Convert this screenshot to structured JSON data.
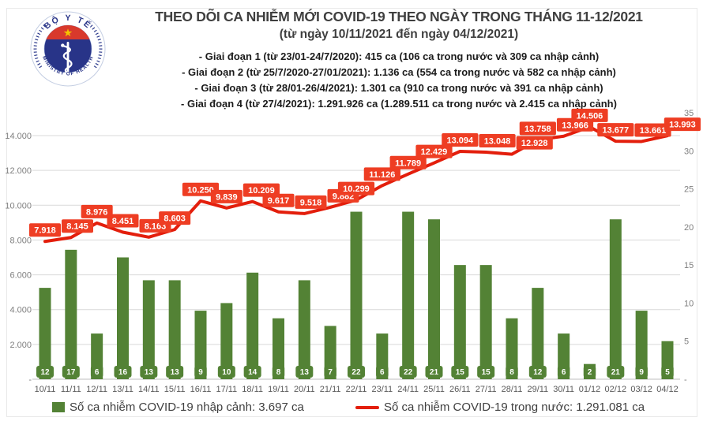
{
  "header": {
    "title": "THEO DÕI CA NHIỄM MỚI COVID-19 THEO NGÀY TRONG THÁNG 11-12/2021",
    "subtitle": "(từ ngày 10/11/2021 đến ngày 04/12/2021)"
  },
  "logo": {
    "top_text": "BỘ Y TẾ",
    "bottom_text": "MINISTRY OF HEALTH"
  },
  "annotations": [
    "- Giai đoạn 1 (từ 23/01-24/7/2020): 415 ca (106 ca trong nước và 309 ca nhập cảnh)",
    "- Giai đoạn 2 (từ 25/7/2020-27/01/2021): 1.136 ca (554 ca trong nước và 582 ca nhập cảnh)",
    "- Giai đoạn 3 (từ 28/01-26/4/2021): 1.301 ca (910 ca trong nước và 391 ca nhập cảnh)",
    "- Giai đoạn 4 (từ 27/4/2021): 1.291.926 ca (1.289.511 ca trong nước và 2.415 ca nhập cảnh)"
  ],
  "chart_data": {
    "type": "bar+line",
    "title": "THEO DÕI CA NHIỄM MỚI COVID-19 THEO NGÀY TRONG THÁNG 11-12/2021",
    "grid": "horizontal",
    "legend_position": "bottom",
    "categories": [
      "10/11",
      "11/11",
      "12/11",
      "13/11",
      "14/11",
      "15/11",
      "16/11",
      "17/11",
      "18/11",
      "19/11",
      "20/11",
      "21/11",
      "22/11",
      "23/11",
      "24/11",
      "25/11",
      "26/11",
      "27/11",
      "28/11",
      "29/11",
      "30/11",
      "01/12",
      "02/12",
      "03/12",
      "04/12"
    ],
    "series": [
      {
        "name": "Số ca nhiễm COVID-19 nhập cảnh",
        "type": "bar",
        "axis": "right",
        "color": "#538235",
        "values": [
          12,
          17,
          6,
          16,
          13,
          13,
          9,
          10,
          14,
          8,
          13,
          7,
          22,
          6,
          22,
          21,
          15,
          15,
          8,
          12,
          6,
          2,
          21,
          9,
          5
        ]
      },
      {
        "name": "Số ca nhiễm COVID-19 trong nước",
        "type": "line",
        "axis": "left",
        "color": "#e31e0c",
        "label_box_color": "#ee3d23",
        "values": [
          7918,
          8145,
          8976,
          8451,
          8163,
          8603,
          10250,
          9839,
          10209,
          9617,
          9518,
          9882,
          10299,
          11126,
          11789,
          12429,
          13094,
          13048,
          12928,
          13758,
          13966,
          14506,
          13677,
          13661,
          13993
        ],
        "labels": [
          "7.918",
          "8.145",
          "8.976",
          "8.451",
          "8.163",
          "8.603",
          "10.250",
          "9.839",
          "10.209",
          "9.617",
          "9.518",
          "9.882",
          "10.299",
          "11.126",
          "11.789",
          "12.429",
          "13.094",
          "13.048",
          "12.928",
          "13.758",
          "13.966",
          "14.506",
          "13.677",
          "13.661",
          "13.993"
        ]
      }
    ],
    "left_axis": {
      "tick_labels": [
        "-",
        "2.000",
        "4.000",
        "6.000",
        "8.000",
        "10.000",
        "12.000",
        "14.000"
      ],
      "tick_values": [
        0,
        2000,
        4000,
        6000,
        8000,
        10000,
        12000,
        14000
      ],
      "range": [
        0,
        15300
      ]
    },
    "right_axis": {
      "tick_labels": [
        "-",
        "5",
        "10",
        "15",
        "20",
        "25",
        "30",
        "35"
      ],
      "tick_values": [
        0,
        5,
        10,
        15,
        20,
        25,
        30,
        35
      ],
      "range": [
        0,
        35
      ]
    }
  },
  "legend": [
    {
      "label": "Số ca nhiễm COVID-19 nhập cảnh: 3.697 ca",
      "marker": "square",
      "color": "#538235"
    },
    {
      "label": "Số ca nhiễm COVID-19 trong nước: 1.291.081 ca",
      "marker": "line",
      "color": "#e31e0c"
    }
  ],
  "colors": {
    "bar": "#538235",
    "line": "#e31e0c",
    "line_label_box": "#ee3d23",
    "gridline": "#d9d9d9",
    "axis_line": "#bfbfbf",
    "tick_text": "#7f7f7f",
    "x_label_text": "#595959",
    "title_text": "#3f3f3f",
    "logo_navy": "#283488",
    "logo_red": "#d8392c",
    "logo_star": "#f5c400"
  }
}
